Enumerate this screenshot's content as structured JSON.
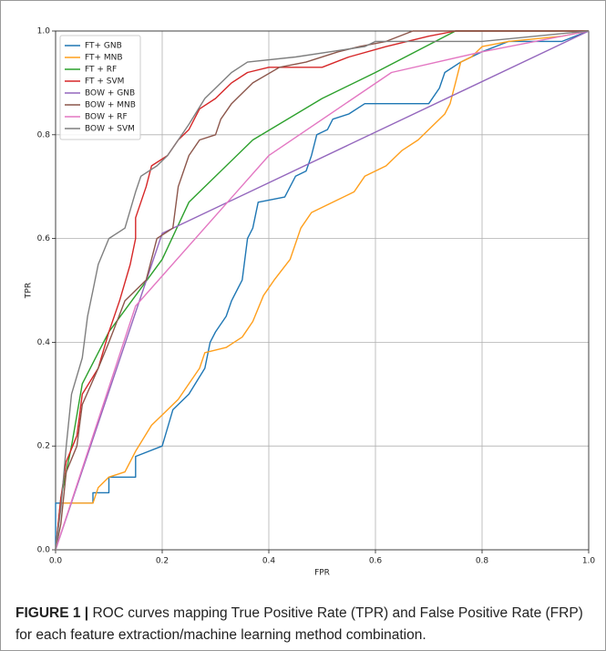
{
  "chart_data": {
    "type": "line",
    "xlabel": "FPR",
    "ylabel": "TPR",
    "xlim": [
      0,
      1
    ],
    "ylim": [
      0,
      1
    ],
    "xticks": [
      {
        "value": 0,
        "label": "0.0"
      },
      0.2,
      0.4,
      0.6,
      0.8,
      {
        "value": 1,
        "label": "1.0"
      }
    ],
    "yticks": [
      {
        "value": 0,
        "label": "0.0"
      },
      0.2,
      0.4,
      0.6,
      0.8,
      {
        "value": 1,
        "label": "1.0"
      }
    ],
    "grid": true,
    "legend": "upper left",
    "series": [
      {
        "name": "FT+ GNB",
        "color": "#1f77b4",
        "x": [
          0,
          0,
          0.07,
          0.07,
          0.1,
          0.1,
          0.15,
          0.15,
          0.2,
          0.22,
          0.25,
          0.28,
          0.29,
          0.3,
          0.32,
          0.33,
          0.35,
          0.36,
          0.37,
          0.38,
          0.43,
          0.45,
          0.47,
          0.48,
          0.49,
          0.51,
          0.52,
          0.55,
          0.58,
          0.7,
          0.72,
          0.73,
          0.76,
          0.8,
          0.85,
          0.95,
          1
        ],
        "values": [
          0,
          0.09,
          0.09,
          0.11,
          0.11,
          0.14,
          0.14,
          0.18,
          0.2,
          0.27,
          0.3,
          0.35,
          0.4,
          0.42,
          0.45,
          0.48,
          0.52,
          0.6,
          0.62,
          0.67,
          0.68,
          0.72,
          0.73,
          0.76,
          0.8,
          0.81,
          0.83,
          0.84,
          0.86,
          0.86,
          0.89,
          0.92,
          0.94,
          0.96,
          0.98,
          0.98,
          1
        ]
      },
      {
        "name": "FT+ MNB",
        "color": "#ff9f1c",
        "x": [
          0,
          0.01,
          0.07,
          0.08,
          0.1,
          0.13,
          0.15,
          0.18,
          0.2,
          0.23,
          0.25,
          0.27,
          0.28,
          0.32,
          0.35,
          0.37,
          0.39,
          0.41,
          0.44,
          0.46,
          0.48,
          0.52,
          0.56,
          0.58,
          0.62,
          0.65,
          0.68,
          0.7,
          0.73,
          0.74,
          0.75,
          0.76,
          0.78,
          0.8,
          0.85,
          0.95,
          1
        ],
        "values": [
          0,
          0.09,
          0.09,
          0.12,
          0.14,
          0.15,
          0.19,
          0.24,
          0.26,
          0.29,
          0.32,
          0.35,
          0.38,
          0.39,
          0.41,
          0.44,
          0.49,
          0.52,
          0.56,
          0.62,
          0.65,
          0.67,
          0.69,
          0.72,
          0.74,
          0.77,
          0.79,
          0.81,
          0.84,
          0.86,
          0.9,
          0.94,
          0.95,
          0.97,
          0.98,
          0.99,
          1
        ]
      },
      {
        "name": "FT + RF",
        "color": "#2ca02c",
        "x": [
          0,
          0.01,
          0.03,
          0.05,
          0.1,
          0.2,
          0.25,
          0.37,
          0.5,
          0.6,
          0.75,
          1
        ],
        "values": [
          0,
          0.1,
          0.2,
          0.32,
          0.42,
          0.56,
          0.67,
          0.79,
          0.87,
          0.92,
          1,
          1
        ]
      },
      {
        "name": "FT + SVM",
        "color": "#d62728",
        "x": [
          0,
          0.01,
          0.02,
          0.04,
          0.05,
          0.08,
          0.1,
          0.12,
          0.14,
          0.15,
          0.15,
          0.17,
          0.18,
          0.21,
          0.23,
          0.25,
          0.27,
          0.3,
          0.33,
          0.36,
          0.4,
          0.5,
          0.55,
          0.62,
          0.7,
          0.75,
          1
        ],
        "values": [
          0,
          0.1,
          0.17,
          0.22,
          0.3,
          0.35,
          0.42,
          0.48,
          0.55,
          0.6,
          0.64,
          0.7,
          0.74,
          0.76,
          0.79,
          0.81,
          0.85,
          0.87,
          0.9,
          0.92,
          0.93,
          0.93,
          0.95,
          0.97,
          0.99,
          1,
          1
        ]
      },
      {
        "name": "BOW + GNB",
        "color": "#9467bd",
        "x": [
          0,
          0.2,
          1
        ],
        "values": [
          0,
          0.61,
          1
        ]
      },
      {
        "name": "BOW + MNB",
        "color": "#8c564b",
        "x": [
          0,
          0.01,
          0.02,
          0.04,
          0.05,
          0.08,
          0.1,
          0.13,
          0.17,
          0.19,
          0.22,
          0.23,
          0.25,
          0.27,
          0.3,
          0.31,
          0.33,
          0.35,
          0.37,
          0.42,
          0.47,
          0.53,
          0.57,
          0.62,
          0.67,
          1
        ],
        "values": [
          0,
          0.05,
          0.15,
          0.2,
          0.28,
          0.35,
          0.4,
          0.48,
          0.52,
          0.6,
          0.62,
          0.7,
          0.76,
          0.79,
          0.8,
          0.83,
          0.86,
          0.88,
          0.9,
          0.93,
          0.94,
          0.96,
          0.97,
          0.98,
          1,
          1
        ]
      },
      {
        "name": "BOW + RF",
        "color": "#e377c2",
        "x": [
          0,
          0.15,
          0.4,
          0.63,
          0.8,
          1
        ],
        "values": [
          0,
          0.47,
          0.76,
          0.92,
          0.96,
          1
        ]
      },
      {
        "name": "BOW + SVM",
        "color": "#7f7f7f",
        "x": [
          0,
          0.01,
          0.02,
          0.03,
          0.05,
          0.06,
          0.07,
          0.08,
          0.1,
          0.13,
          0.15,
          0.16,
          0.19,
          0.21,
          0.23,
          0.25,
          0.28,
          0.3,
          0.33,
          0.36,
          0.45,
          0.58,
          0.6,
          0.8,
          1
        ],
        "values": [
          0,
          0.08,
          0.2,
          0.3,
          0.37,
          0.45,
          0.5,
          0.55,
          0.6,
          0.62,
          0.69,
          0.72,
          0.74,
          0.76,
          0.79,
          0.82,
          0.87,
          0.89,
          0.92,
          0.94,
          0.95,
          0.97,
          0.98,
          0.98,
          1
        ]
      }
    ]
  },
  "caption": {
    "label": "FIGURE 1 |",
    "text": "ROC curves mapping True Positive Rate (TPR) and False Positive Rate (FRP) for each feature extraction/machine learning method combination."
  }
}
